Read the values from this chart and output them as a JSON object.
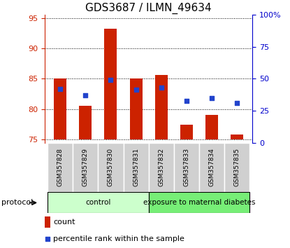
{
  "title": "GDS3687 / ILMN_49634",
  "samples": [
    "GSM357828",
    "GSM357829",
    "GSM357830",
    "GSM357831",
    "GSM357832",
    "GSM357833",
    "GSM357834",
    "GSM357835"
  ],
  "bar_values": [
    85.0,
    80.6,
    93.2,
    85.0,
    85.6,
    77.5,
    79.0,
    75.8
  ],
  "dot_values": [
    83.3,
    82.3,
    84.8,
    83.2,
    83.5,
    81.4,
    81.8,
    81.0
  ],
  "bar_bottom": 75.0,
  "ylim_left": [
    74.5,
    95.5
  ],
  "ylim_right": [
    0,
    100
  ],
  "yticks_left": [
    75,
    80,
    85,
    90,
    95
  ],
  "yticks_right": [
    0,
    25,
    50,
    75,
    100
  ],
  "ytick_labels_right": [
    "0",
    "25",
    "50",
    "75",
    "100%"
  ],
  "bar_color": "#cc2200",
  "dot_color": "#2244cc",
  "protocol_groups": [
    {
      "label": "control",
      "start": 0,
      "end": 3,
      "color": "#ccffcc"
    },
    {
      "label": "exposure to maternal diabetes",
      "start": 4,
      "end": 7,
      "color": "#77ee77"
    }
  ],
  "protocol_label": "protocol",
  "legend_count_label": "count",
  "legend_pct_label": "percentile rank within the sample",
  "left_tick_color": "#cc2200",
  "right_tick_color": "#0000cc",
  "sample_box_color": "#d0d0d0",
  "title_fontsize": 11
}
